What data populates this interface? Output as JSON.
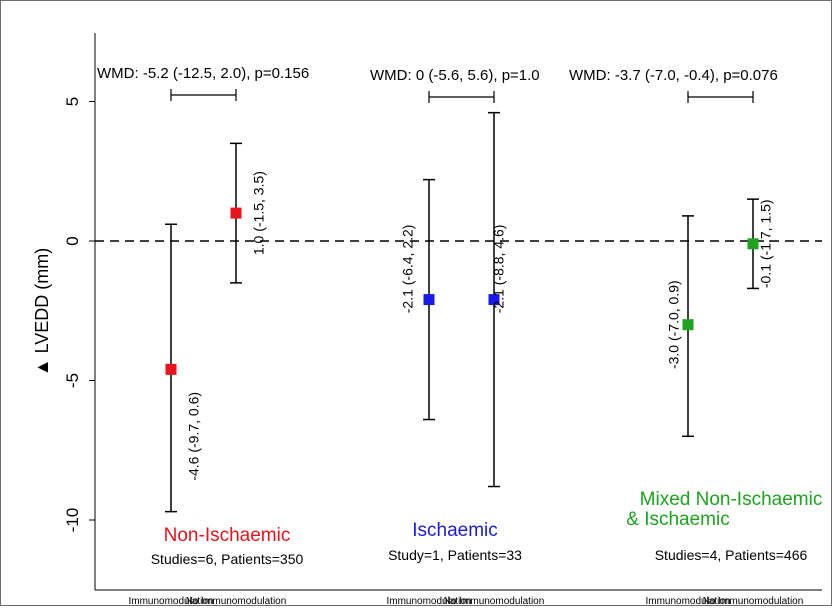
{
  "chart_data": {
    "type": "scatter",
    "ylabel": "▲ LVEDD (mm)",
    "ylim": [
      -12.5,
      7.5
    ],
    "yticks": [
      5,
      0,
      -5,
      -10
    ],
    "reference_line": 0,
    "categories": [
      "Immunomodulation",
      "No Immunomodulation",
      "Immunomodulation",
      "No Immunomodulation",
      "Immunomodulation",
      "No Immunomodulation"
    ],
    "groups": [
      {
        "name": "Non-Ischaemic",
        "color": "#e8141b",
        "info": "Studies=6, Patients=350",
        "wmd": "WMD: -5.2 (-12.5, 2.0), p=0.156",
        "points": [
          {
            "category": "Immunomodulation",
            "estimate": -4.6,
            "lower": -9.7,
            "upper": 0.6,
            "label": "-4.6 (-9.7, 0.6)"
          },
          {
            "category": "No Immunomodulation",
            "estimate": 1.0,
            "lower": -1.5,
            "upper": 3.5,
            "label": "1.0 (-1.5, 3.5)"
          }
        ]
      },
      {
        "name": "Ischaemic",
        "color": "#1a1ae6",
        "info": "Study=1, Patients=33",
        "wmd": "WMD: 0 (-5.6, 5.6), p=1.0",
        "points": [
          {
            "category": "Immunomodulation",
            "estimate": -2.1,
            "lower": -6.4,
            "upper": 2.2,
            "label": "-2.1 (-6.4, 2.2)"
          },
          {
            "category": "No Immunomodulation",
            "estimate": -2.1,
            "lower": -8.8,
            "upper": 4.6,
            "label": "-2.1 (-8.8, 4.6)"
          }
        ]
      },
      {
        "name": "Mixed Non-Ischaemic",
        "name_line2": "& Ischaemic",
        "color": "#1ea31e",
        "info": "Studies=4, Patients=466",
        "wmd": "WMD: -3.7 (-7.0, -0.4), p=0.076",
        "points": [
          {
            "category": "Immunomodulation",
            "estimate": -3.0,
            "lower": -7.0,
            "upper": 0.9,
            "label": "-3.0 (-7.0, 0.9)"
          },
          {
            "category": "No Immunomodulation",
            "estimate": -0.1,
            "lower": -1.7,
            "upper": 1.5,
            "label": "-0.1 (-1.7, 1.5)"
          }
        ]
      }
    ]
  }
}
